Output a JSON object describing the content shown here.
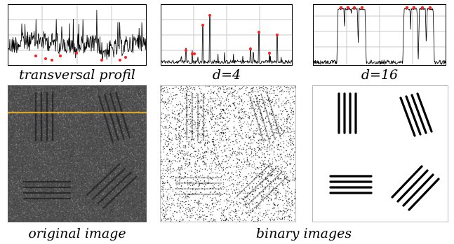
{
  "captions": {
    "transversal": "transversal profil",
    "d4": "d=4",
    "d16": "d=16",
    "original": "original image",
    "binary": "binary images"
  },
  "colors": {
    "profile_line": "#000000",
    "marker": "#ff2020",
    "grid": "#c8c8c8",
    "scan_line": "#f0b020",
    "noise_background": "#4a4a4a"
  },
  "chart_data": [
    {
      "type": "line",
      "description_key": "transversal",
      "grid": true,
      "marker_count": 8
    },
    {
      "type": "line",
      "description_key": "d4",
      "grid": true,
      "marker_count": 8
    },
    {
      "type": "line",
      "description_key": "d16",
      "grid": true,
      "marker_count": 8
    }
  ]
}
